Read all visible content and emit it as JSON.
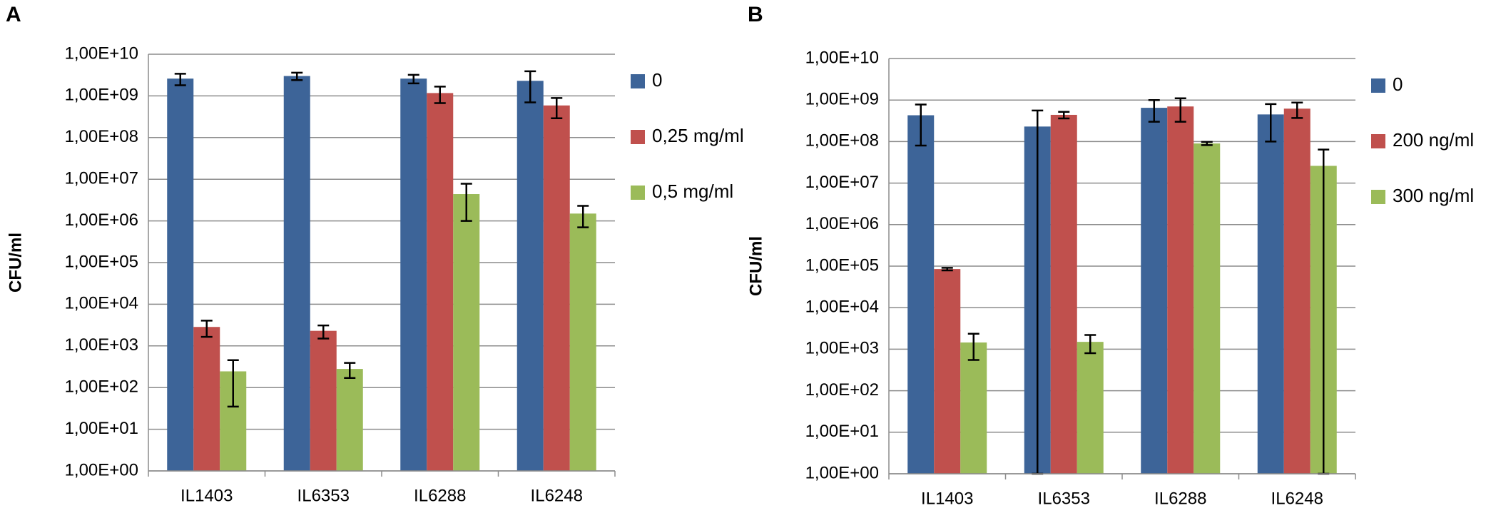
{
  "chart_data": [
    {
      "type": "bar",
      "panel": "A",
      "ylabel": "CFU/ml",
      "log": true,
      "grid": true,
      "legend": "right",
      "categories": [
        "IL1403",
        "IL6353",
        "IL6288",
        "IL6248"
      ],
      "ylim": [
        1,
        10000000000
      ],
      "yticks": [
        {
          "value": 1,
          "label": "1,00E+00"
        },
        {
          "value": 10,
          "label": "1,00E+01"
        },
        {
          "value": 100,
          "label": "1,00E+02"
        },
        {
          "value": 1000,
          "label": "1,00E+03"
        },
        {
          "value": 10000,
          "label": "1,00E+04"
        },
        {
          "value": 100000,
          "label": "1,00E+05"
        },
        {
          "value": 1000000,
          "label": "1,00E+06"
        },
        {
          "value": 10000000,
          "label": "1,00E+07"
        },
        {
          "value": 100000000,
          "label": "1,00E+08"
        },
        {
          "value": 1000000000,
          "label": "1,00E+09"
        },
        {
          "value": 10000000000,
          "label": "1,00E+10"
        }
      ],
      "series": [
        {
          "name": "0",
          "color": "#3d6498",
          "values": [
            2600000000,
            3000000000,
            2600000000,
            2300000000
          ],
          "errors": [
            800000000,
            600000000,
            600000000,
            1600000000
          ]
        },
        {
          "name": "0,25 mg/ml",
          "color": "#c0504d",
          "values": [
            2850,
            2300,
            1170000000,
            590000000
          ],
          "errors": [
            1200,
            800,
            500000000,
            300000000
          ]
        },
        {
          "name": "0,5 mg/ml",
          "color": "#9bbb59",
          "values": [
            245,
            280,
            4400000,
            1500000
          ],
          "errors": [
            210,
            110,
            3400000,
            800000
          ]
        }
      ]
    },
    {
      "type": "bar",
      "panel": "B",
      "ylabel": "CFU/ml",
      "log": true,
      "grid": true,
      "legend": "right",
      "categories": [
        "IL1403",
        "IL6353",
        "IL6288",
        "IL6248"
      ],
      "ylim": [
        1,
        10000000000
      ],
      "yticks": [
        {
          "value": 1,
          "label": "1,00E+00"
        },
        {
          "value": 10,
          "label": "1,00E+01"
        },
        {
          "value": 100,
          "label": "1,00E+02"
        },
        {
          "value": 1000,
          "label": "1,00E+03"
        },
        {
          "value": 10000,
          "label": "1,00E+04"
        },
        {
          "value": 100000,
          "label": "1,00E+05"
        },
        {
          "value": 1000000,
          "label": "1,00E+06"
        },
        {
          "value": 10000000,
          "label": "1,00E+07"
        },
        {
          "value": 100000000,
          "label": "1,00E+08"
        },
        {
          "value": 1000000000,
          "label": "1,00E+09"
        },
        {
          "value": 10000000000,
          "label": "1,00E+10"
        }
      ],
      "series": [
        {
          "name": "0",
          "color": "#3d6498",
          "values": [
            430000000,
            230000000,
            650000000,
            450000000
          ],
          "errors": [
            350000000,
            330000000,
            350000000,
            350000000
          ]
        },
        {
          "name": "200 ng/ml",
          "color": "#c0504d",
          "values": [
            85000,
            440000000,
            700000000,
            620000000
          ],
          "errors": [
            6000,
            80000000,
            400000000,
            250000000
          ]
        },
        {
          "name": "300 ng/ml",
          "color": "#9bbb59",
          "values": [
            1450,
            1500,
            90000000,
            26000000
          ],
          "errors": [
            900,
            700,
            8000000,
            38000000
          ]
        }
      ]
    }
  ]
}
